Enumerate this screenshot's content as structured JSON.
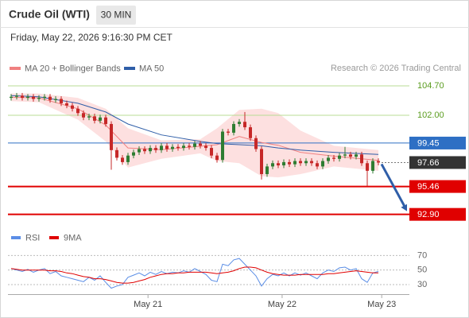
{
  "header": {
    "title": "Crude Oil (WTI)",
    "interval": "30 MIN",
    "datetime": "Friday, May 22, 2026 9:16:30 PM CET"
  },
  "chart_data": [
    {
      "type": "candlestick",
      "annotation": "Research © 2026 Trading Central",
      "up_color": "#2e7d32",
      "down_color": "#c62828",
      "x": [
        0,
        1,
        2,
        3,
        4,
        5,
        6,
        7,
        8,
        9,
        10,
        11,
        12,
        13,
        14,
        15,
        16,
        17,
        18,
        19,
        20,
        21,
        22,
        23,
        24,
        25,
        26,
        27,
        28,
        29,
        30,
        31,
        32,
        33,
        34,
        35,
        36,
        37,
        38,
        39,
        40,
        41,
        42,
        43,
        44,
        45,
        46,
        47,
        48,
        49,
        50,
        51,
        52,
        53,
        54,
        55,
        56,
        57,
        58,
        59,
        60,
        61,
        62,
        63,
        64,
        65,
        66
      ],
      "open": [
        103.6,
        103.7,
        103.8,
        103.6,
        103.7,
        103.5,
        103.6,
        103.7,
        103.4,
        103.5,
        103.1,
        102.9,
        102.6,
        102.2,
        101.8,
        101.9,
        101.5,
        101.8,
        101.2,
        98.8,
        98.1,
        97.7,
        98.3,
        98.6,
        98.9,
        98.7,
        99.0,
        98.8,
        99.2,
        98.9,
        99.1,
        99.0,
        99.2,
        99.1,
        99.4,
        99.2,
        99.0,
        98.3,
        97.9,
        100.5,
        100.4,
        101.2,
        101.4,
        100.9,
        99.9,
        98.9,
        96.6,
        97.3,
        97.6,
        97.4,
        97.7,
        97.5,
        97.8,
        97.6,
        97.8,
        97.6,
        97.3,
        97.8,
        98.1,
        98.0,
        98.3,
        98.4,
        98.2,
        98.4,
        97.6,
        96.9,
        97.8
      ],
      "high": [
        103.95,
        104.05,
        104.05,
        103.95,
        103.95,
        103.85,
        103.95,
        103.95,
        103.75,
        103.75,
        103.35,
        103.15,
        102.85,
        102.45,
        102.15,
        102.15,
        102.05,
        102.05,
        101.45,
        99.05,
        98.35,
        98.55,
        98.85,
        99.15,
        99.15,
        99.25,
        99.25,
        99.45,
        99.45,
        99.35,
        99.35,
        99.45,
        99.45,
        99.65,
        99.65,
        99.45,
        99.25,
        98.55,
        100.75,
        100.75,
        101.45,
        101.65,
        102.3,
        101.15,
        100.15,
        99.15,
        97.55,
        97.85,
        97.85,
        97.95,
        97.95,
        98.05,
        98.05,
        98.05,
        98.05,
        97.85,
        98.05,
        98.35,
        98.35,
        98.55,
        99.1,
        98.65,
        98.65,
        98.65,
        97.85,
        98.05,
        98.05
      ],
      "low": [
        103.35,
        103.45,
        103.35,
        103.35,
        103.25,
        103.25,
        103.35,
        103.15,
        103.15,
        102.85,
        102.65,
        102.35,
        101.95,
        101.55,
        101.55,
        101.25,
        101.25,
        100.95,
        97.0,
        97.85,
        97.45,
        97.45,
        98.05,
        98.35,
        98.45,
        98.45,
        98.55,
        98.55,
        98.65,
        98.65,
        98.75,
        98.75,
        98.85,
        98.85,
        98.95,
        98.75,
        98.05,
        97.65,
        97.65,
        100.15,
        100.15,
        100.95,
        100.65,
        99.65,
        98.65,
        96.1,
        96.35,
        97.05,
        97.15,
        97.15,
        97.25,
        97.25,
        97.35,
        97.35,
        97.35,
        97.05,
        97.05,
        97.55,
        97.75,
        97.75,
        98.05,
        97.95,
        97.95,
        97.35,
        95.5,
        96.65,
        97.4
      ],
      "close": [
        103.7,
        103.8,
        103.6,
        103.7,
        103.5,
        103.6,
        103.7,
        103.4,
        103.5,
        103.1,
        102.9,
        102.6,
        102.2,
        101.8,
        101.9,
        101.5,
        101.8,
        101.2,
        98.8,
        98.1,
        97.7,
        98.3,
        98.6,
        98.9,
        98.7,
        99.0,
        98.8,
        99.2,
        98.9,
        99.1,
        99.0,
        99.2,
        99.1,
        99.4,
        99.2,
        99.0,
        98.3,
        97.9,
        100.5,
        100.4,
        101.2,
        101.4,
        100.9,
        99.9,
        98.9,
        96.6,
        97.3,
        97.6,
        97.4,
        97.7,
        97.5,
        97.8,
        97.6,
        97.8,
        97.6,
        97.3,
        97.8,
        98.1,
        98.0,
        98.3,
        98.4,
        98.2,
        98.4,
        97.6,
        96.9,
        97.8,
        97.66
      ],
      "series": [
        {
          "name": "MA 20 + Bollinger Bands",
          "color": "#f08080",
          "band_color": "#fde0e0",
          "x": [
            0,
            5,
            12,
            17,
            21,
            27,
            34,
            37,
            41,
            45,
            48,
            52,
            58,
            66
          ],
          "values": [
            103.65,
            103.6,
            102.6,
            101.1,
            99.0,
            98.85,
            99.15,
            99.3,
            100.05,
            99.5,
            99.25,
            98.6,
            98.25,
            97.85
          ],
          "upper": [
            104.0,
            104.0,
            103.6,
            102.6,
            100.8,
            99.7,
            99.8,
            100.8,
            102.5,
            102.6,
            102.2,
            100.6,
            99.2,
            98.8
          ],
          "lower": [
            103.3,
            103.2,
            101.6,
            99.6,
            97.2,
            98.0,
            98.5,
            97.8,
            97.6,
            96.4,
            96.3,
            96.6,
            97.3,
            96.9
          ]
        },
        {
          "name": "MA 50",
          "color": "#2f5ea8",
          "x": [
            0,
            5,
            12,
            17,
            21,
            27,
            34,
            37,
            41,
            45,
            48,
            52,
            58,
            66
          ],
          "values": [
            103.8,
            103.7,
            103.1,
            102.3,
            101.2,
            100.2,
            99.6,
            99.4,
            99.3,
            99.2,
            99.0,
            98.8,
            98.6,
            98.4
          ]
        }
      ],
      "levels": [
        {
          "value": 104.7,
          "label": "104.70",
          "color": "#5a9c1e",
          "kind": "line"
        },
        {
          "value": 102,
          "label": "102.00",
          "color": "#5a9c1e",
          "kind": "line"
        },
        {
          "value": 99.45,
          "color": "#2e6fc4",
          "kind": "box"
        },
        {
          "value": 97.66,
          "color": "#333333",
          "kind": "current"
        },
        {
          "value": 95.46,
          "color": "#e00000",
          "kind": "box"
        },
        {
          "value": 92.9,
          "label": "92.90",
          "color": "#e00000",
          "kind": "box"
        }
      ],
      "xlim": [
        -0.57,
        71.57
      ],
      "ylim": [
        91.78,
        105.65
      ]
    },
    {
      "type": "line",
      "x": [
        0,
        1,
        2,
        3,
        4,
        5,
        6,
        7,
        8,
        9,
        10,
        11,
        12,
        13,
        14,
        15,
        16,
        17,
        18,
        19,
        20,
        21,
        22,
        23,
        24,
        25,
        26,
        27,
        28,
        29,
        30,
        31,
        32,
        33,
        34,
        35,
        36,
        37,
        38,
        39,
        40,
        41,
        42,
        43,
        44,
        45,
        46,
        47,
        48,
        49,
        50,
        51,
        52,
        53,
        54,
        55,
        56,
        57,
        58,
        59,
        60,
        61,
        62,
        63,
        64,
        65,
        66
      ],
      "series": [
        {
          "name": "RSI",
          "color": "#5b8ee6",
          "values": [
            52,
            50,
            48,
            51,
            47,
            50,
            52,
            45,
            48,
            42,
            40,
            38,
            36,
            34,
            40,
            36,
            42,
            33,
            25,
            28,
            30,
            40,
            43,
            46,
            42,
            47,
            44,
            48,
            45,
            47,
            46,
            49,
            47,
            52,
            48,
            44,
            36,
            34,
            58,
            56,
            64,
            66,
            58,
            50,
            42,
            28,
            38,
            44,
            42,
            46,
            42,
            46,
            43,
            46,
            42,
            38,
            46,
            50,
            48,
            53,
            54,
            50,
            52,
            38,
            33,
            46,
            48
          ]
        },
        {
          "name": "9MA",
          "color": "#e00000",
          "values": [
            52,
            51,
            50,
            50,
            50,
            50,
            50,
            49,
            49,
            48,
            46,
            45,
            43,
            41,
            40,
            38,
            38,
            37,
            35,
            33,
            32,
            32,
            33,
            35,
            37,
            40,
            42,
            44,
            45,
            45,
            46,
            46,
            47,
            47,
            47,
            47,
            46,
            45,
            46,
            47,
            49,
            52,
            54,
            54,
            53,
            50,
            47,
            45,
            44,
            43,
            43,
            43,
            44,
            44,
            44,
            44,
            44,
            45,
            45,
            46,
            47,
            48,
            49,
            48,
            47,
            46,
            46
          ]
        }
      ],
      "xlim": [
        -0.57,
        71.57
      ],
      "ylim": [
        19,
        77
      ],
      "yticks": [
        30,
        50,
        70
      ],
      "xticks": [
        {
          "value": 24.6,
          "label": "May 21"
        },
        {
          "value": 48.7,
          "label": "May 22"
        },
        {
          "value": 66.6,
          "label": "May 23"
        }
      ]
    }
  ]
}
